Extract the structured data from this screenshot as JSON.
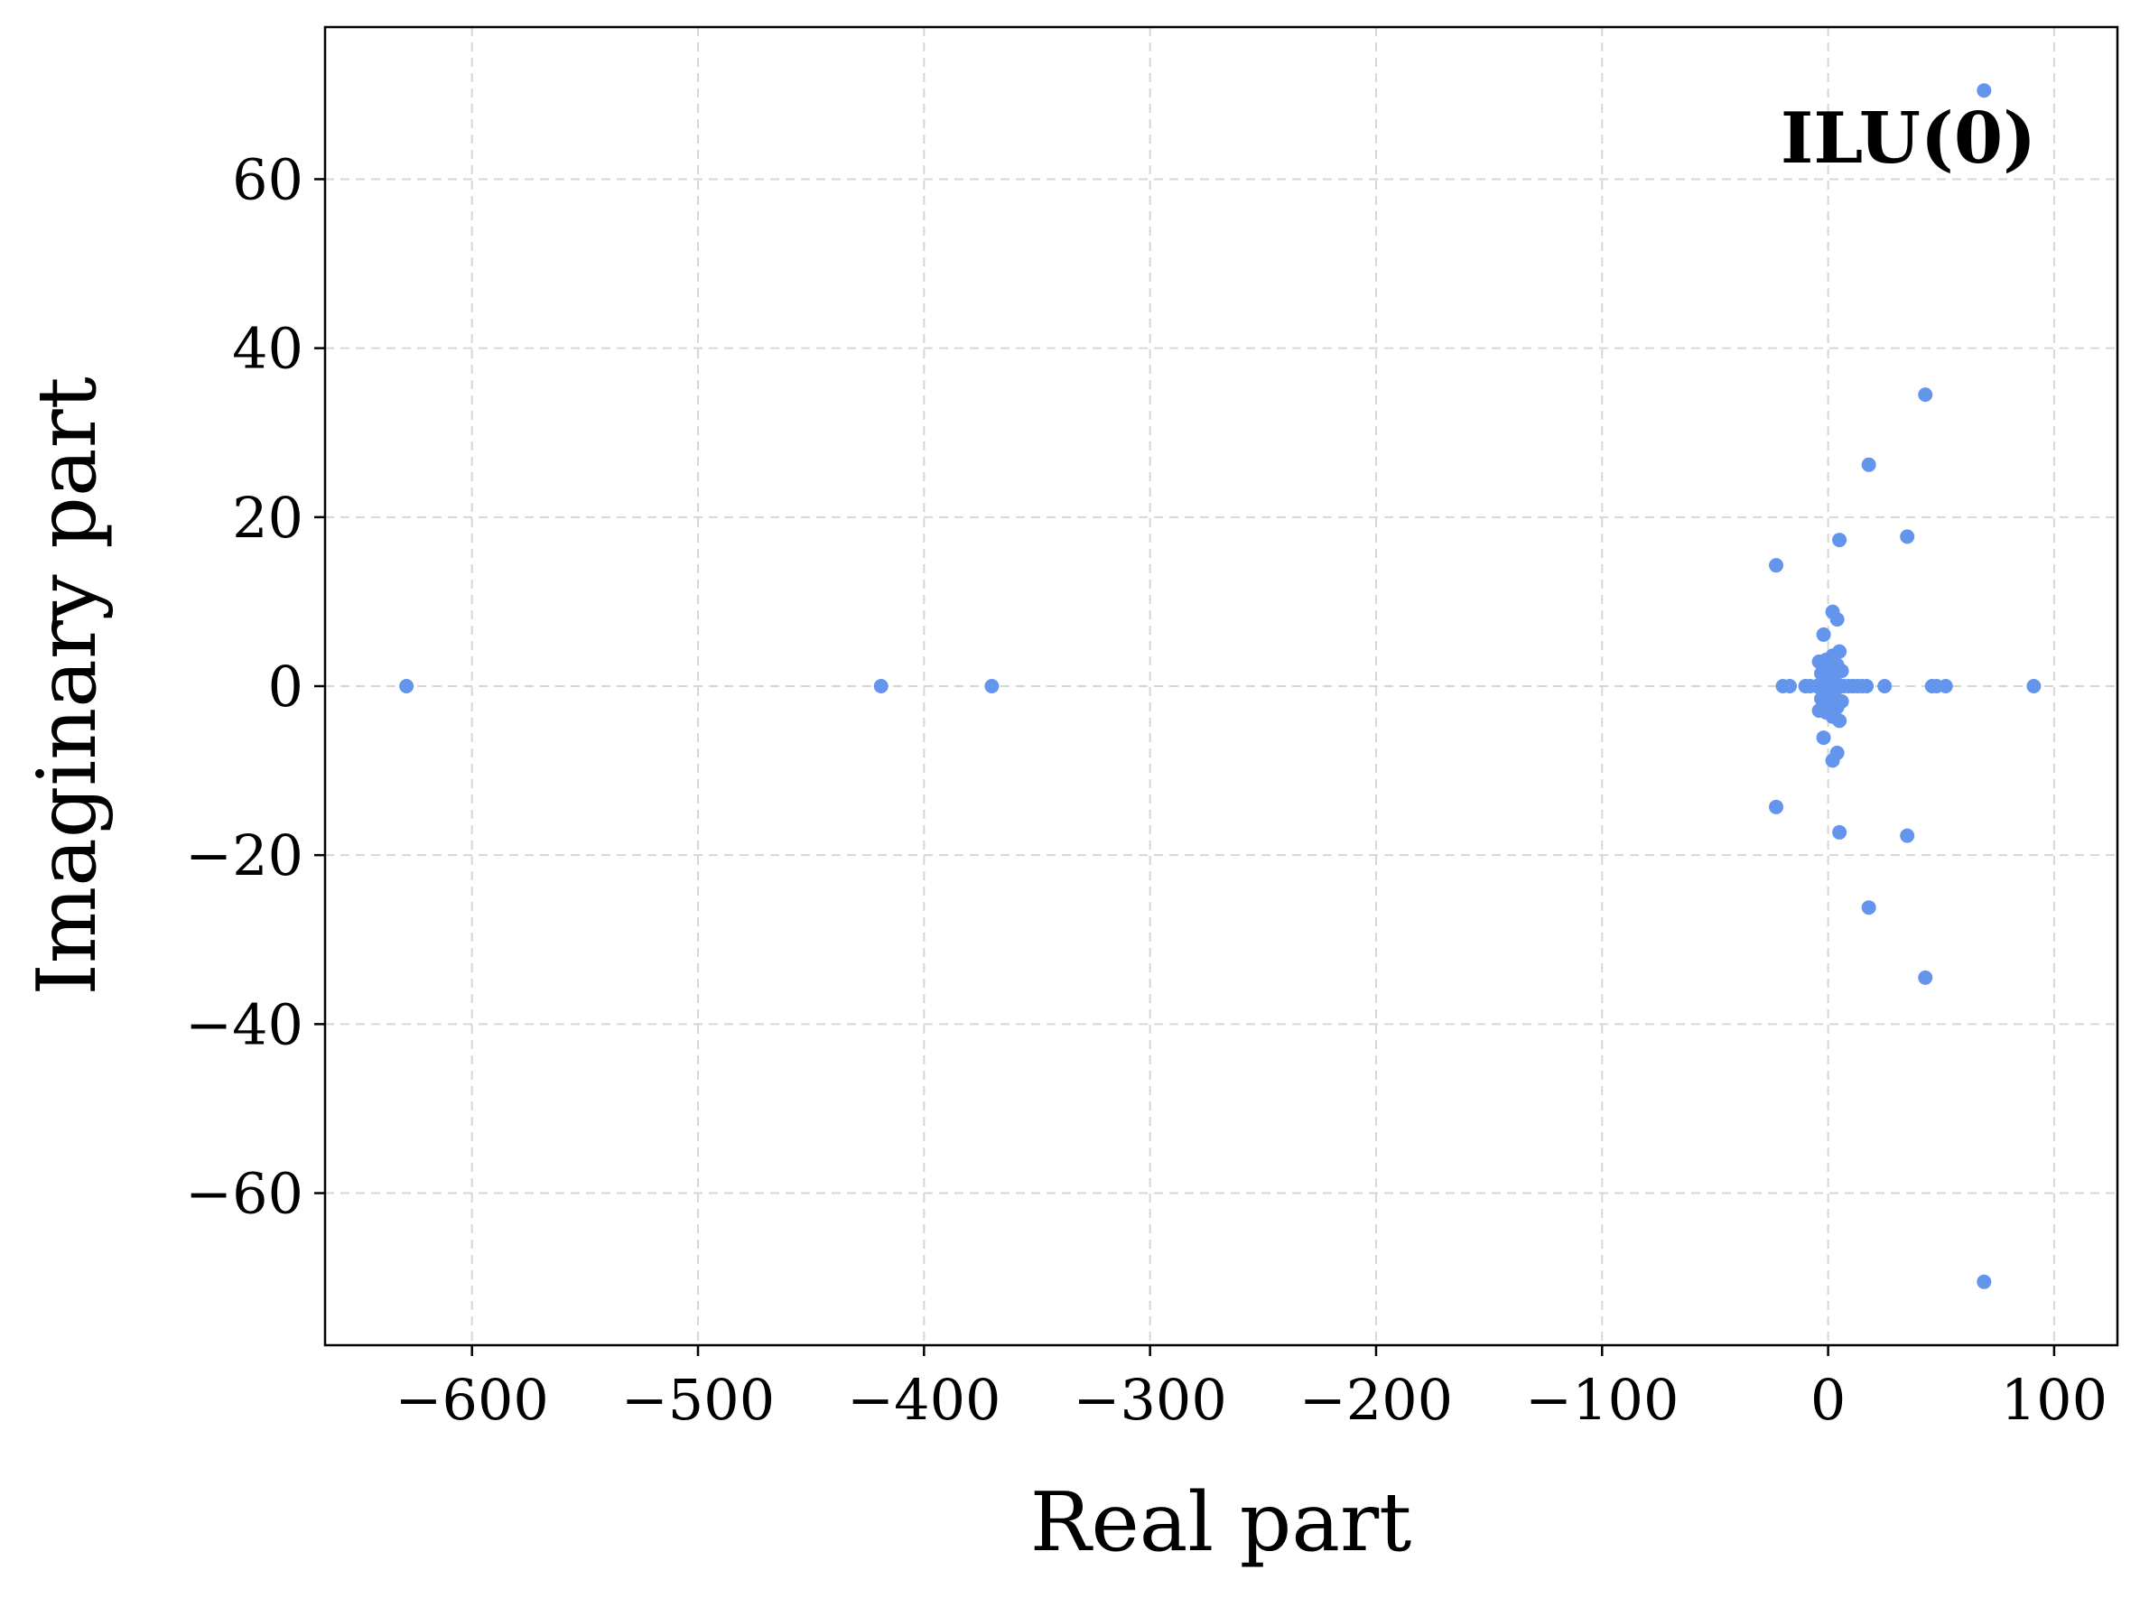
{
  "chart_data": {
    "type": "scatter",
    "title": "",
    "annotation": "ILU(0)",
    "xlabel": "Real part",
    "ylabel": "Imaginary part",
    "xlim": [
      -665,
      128
    ],
    "ylim": [
      -78,
      78
    ],
    "xticks": [
      -600,
      -500,
      -400,
      -300,
      -200,
      -100,
      0,
      100
    ],
    "xtick_labels": [
      "−600",
      "−500",
      "−400",
      "−300",
      "−200",
      "−100",
      "0",
      "100"
    ],
    "yticks": [
      -60,
      -40,
      -20,
      0,
      20,
      40,
      60
    ],
    "ytick_labels": [
      "−60",
      "−40",
      "−20",
      "0",
      "20",
      "40",
      "60"
    ],
    "grid": true,
    "marker_color": "#6495ed",
    "series": [
      {
        "points": [
          [
            -629,
            0
          ],
          [
            -419,
            0
          ],
          [
            -370,
            0
          ],
          [
            69,
            70.5
          ],
          [
            69,
            -70.5
          ],
          [
            43,
            34.5
          ],
          [
            43,
            -34.5
          ],
          [
            18,
            26.2
          ],
          [
            18,
            -26.2
          ],
          [
            35,
            17.7
          ],
          [
            35,
            -17.7
          ],
          [
            5,
            17.3
          ],
          [
            5,
            -17.3
          ],
          [
            -23,
            14.3
          ],
          [
            -23,
            -14.3
          ],
          [
            2,
            8.8
          ],
          [
            2,
            -8.8
          ],
          [
            4,
            7.9
          ],
          [
            4,
            -7.9
          ],
          [
            -2,
            6.1
          ],
          [
            -2,
            -6.1
          ],
          [
            5,
            4.1
          ],
          [
            5,
            -4.1
          ],
          [
            2,
            3.6
          ],
          [
            2,
            -3.6
          ],
          [
            -1,
            3.1
          ],
          [
            -1,
            -3.1
          ],
          [
            -4,
            2.9
          ],
          [
            -4,
            -2.9
          ],
          [
            4,
            2.5
          ],
          [
            4,
            -2.5
          ],
          [
            0,
            2
          ],
          [
            0,
            -2
          ],
          [
            -3,
            1.5
          ],
          [
            -3,
            -1.5
          ],
          [
            6,
            1.8
          ],
          [
            6,
            -1.8
          ],
          [
            1,
            1
          ],
          [
            1,
            -1
          ],
          [
            -2,
            0.8
          ],
          [
            -2,
            -0.8
          ],
          [
            3,
            0.6
          ],
          [
            3,
            -0.6
          ],
          [
            -20,
            0
          ],
          [
            -17,
            0
          ],
          [
            -10,
            0
          ],
          [
            -8,
            0
          ],
          [
            -5,
            0
          ],
          [
            -3,
            0
          ],
          [
            -1,
            0
          ],
          [
            1,
            0
          ],
          [
            3,
            0
          ],
          [
            5,
            0
          ],
          [
            7,
            0
          ],
          [
            9,
            0
          ],
          [
            11,
            0
          ],
          [
            13,
            0
          ],
          [
            15,
            0
          ],
          [
            17,
            0
          ],
          [
            25,
            0
          ],
          [
            46,
            0
          ],
          [
            48,
            0
          ],
          [
            52,
            0
          ],
          [
            91,
            0
          ]
        ]
      }
    ]
  }
}
